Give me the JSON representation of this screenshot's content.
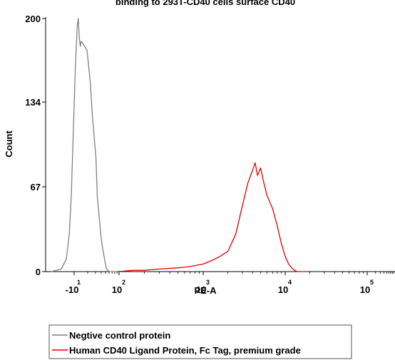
{
  "chart_data": {
    "type": "line",
    "title": "binding to 293T-CD40 cells surface CD40",
    "xlabel": "PE-A",
    "ylabel": "Count",
    "x_scale": "biexponential",
    "ylim": [
      0,
      200
    ],
    "y_ticks": [
      {
        "value": 0,
        "label": "0"
      },
      {
        "value": 67,
        "label": "67"
      },
      {
        "value": 134,
        "label": "134"
      },
      {
        "value": 200,
        "label": "200"
      }
    ],
    "x_ticks": [
      {
        "base": "-10",
        "exp": "1"
      },
      {
        "base": "10",
        "exp": "2"
      },
      {
        "base": "10",
        "exp": "3"
      },
      {
        "base": "10",
        "exp": "4"
      },
      {
        "base": "10",
        "exp": "5"
      }
    ],
    "grid": false,
    "legend_position": "bottom",
    "series": [
      {
        "name": "Negtive control protein",
        "color": "#808080",
        "x": [
          -30,
          -20,
          -15,
          -12,
          -10,
          -8,
          -6,
          -4,
          -3,
          -2,
          -1,
          0,
          1,
          2,
          3,
          5,
          6,
          8,
          10,
          12,
          15,
          18,
          20,
          25,
          30,
          40,
          50,
          60,
          70,
          80
        ],
        "y": [
          0,
          2,
          10,
          30,
          60,
          110,
          160,
          195,
          200,
          185,
          178,
          182,
          175,
          150,
          120,
          90,
          60,
          42,
          28,
          20,
          12,
          6,
          3,
          1,
          0,
          0,
          0,
          0,
          0,
          0
        ]
      },
      {
        "name": "Human CD40 Ligand Protein, Fc Tag, premium grade",
        "color": "#e00000",
        "x": [
          80,
          150,
          200,
          300,
          500,
          700,
          1000,
          1300,
          1600,
          2000,
          2500,
          3000,
          3500,
          4000,
          4300,
          4600,
          5000,
          5500,
          6000,
          7000,
          8000,
          9000,
          10000,
          11000,
          12000,
          13000,
          14000,
          15000,
          16000,
          18000
        ],
        "y": [
          0,
          1,
          1,
          2,
          3,
          4,
          6,
          9,
          12,
          16,
          30,
          52,
          70,
          80,
          86,
          76,
          82,
          70,
          60,
          50,
          36,
          22,
          12,
          6,
          3,
          1,
          0,
          0,
          0,
          0
        ]
      }
    ]
  }
}
